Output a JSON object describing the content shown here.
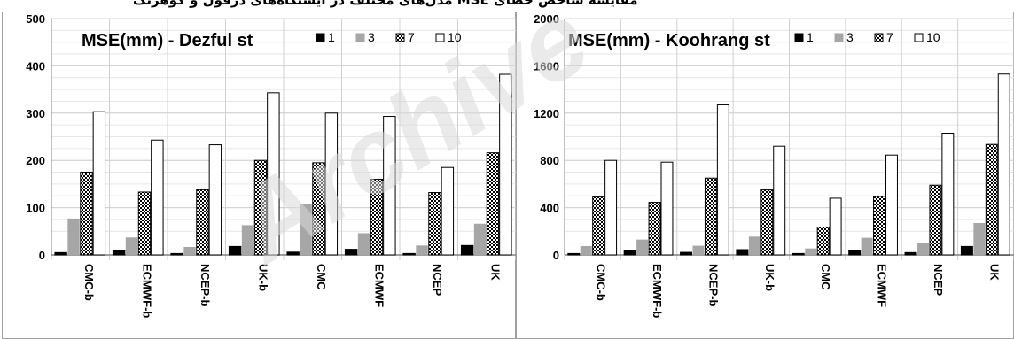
{
  "header_text": "مقایسه شاخص خطای MSE مدل‌های مختلف در ایستگاه‌های دزفول و کوهرنگ",
  "watermark": "Archive",
  "colors": {
    "s1": "#000000",
    "s3": "#a6a6a6",
    "s7": "#7f7f7f",
    "s10": "#ffffff",
    "grid": "#d0d0d0",
    "axis": "#808080",
    "frame": "#a0a0a0",
    "watermark": "#d9d9d9"
  },
  "chart_data": [
    {
      "type": "bar",
      "title": "MSE(mm) - Dezful st",
      "categories": [
        "CMC-b",
        "ECMWF-b",
        "NCEP-b",
        "UK-b",
        "CMC",
        "ECMWF",
        "NCEP",
        "UK"
      ],
      "series": [
        {
          "name": "1",
          "values": [
            5,
            10,
            3,
            18,
            6,
            12,
            3,
            20
          ]
        },
        {
          "name": "3",
          "values": [
            77,
            37,
            17,
            63,
            108,
            46,
            20,
            66
          ]
        },
        {
          "name": "7",
          "values": [
            175,
            133,
            138,
            200,
            195,
            160,
            132,
            216
          ]
        },
        {
          "name": "10",
          "values": [
            303,
            243,
            233,
            343,
            300,
            293,
            185,
            382
          ]
        }
      ],
      "ylim": [
        0,
        500
      ],
      "yticks": [
        0,
        100,
        200,
        300,
        400,
        500
      ],
      "grid": true,
      "legend": "top-right"
    },
    {
      "type": "bar",
      "title": "MSE(mm) - Koohrang st",
      "categories": [
        "CMC-b",
        "ECMWF-b",
        "NCEP-b",
        "UK-b",
        "CMC",
        "ECMWF",
        "NCEP",
        "UK"
      ],
      "series": [
        {
          "name": "1",
          "values": [
            12,
            35,
            22,
            45,
            12,
            38,
            20,
            72
          ]
        },
        {
          "name": "3",
          "values": [
            75,
            130,
            78,
            155,
            55,
            145,
            105,
            270
          ]
        },
        {
          "name": "7",
          "values": [
            490,
            445,
            650,
            550,
            235,
            495,
            590,
            935
          ]
        },
        {
          "name": "10",
          "values": [
            800,
            785,
            1270,
            920,
            480,
            845,
            1030,
            1530
          ]
        }
      ],
      "ylim": [
        0,
        2000
      ],
      "yticks": [
        0,
        400,
        800,
        1200,
        1600,
        2000
      ],
      "grid": true,
      "legend": "top-right"
    }
  ]
}
